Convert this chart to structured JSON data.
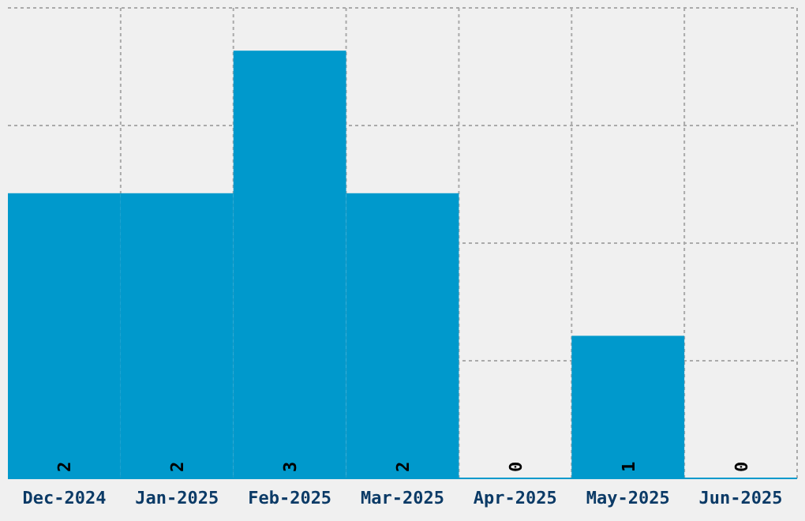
{
  "chart_data": {
    "type": "bar",
    "categories": [
      "Dec-2024",
      "Jan-2025",
      "Feb-2025",
      "Mar-2025",
      "Apr-2025",
      "May-2025",
      "Jun-2025"
    ],
    "values": [
      2,
      2,
      3,
      2,
      0,
      1,
      0
    ],
    "color": "#0099cc",
    "ylim": [
      0,
      3.3
    ],
    "yticks": [
      {
        "value": 0,
        "label": null
      },
      {
        "value": 0.825,
        "label": null
      },
      {
        "value": 1.65,
        "label": null
      },
      {
        "value": 2.475,
        "label": null
      },
      {
        "value": 3.3,
        "label": null
      }
    ],
    "tick_labels": "x",
    "grid": true,
    "data_labels": true
  }
}
